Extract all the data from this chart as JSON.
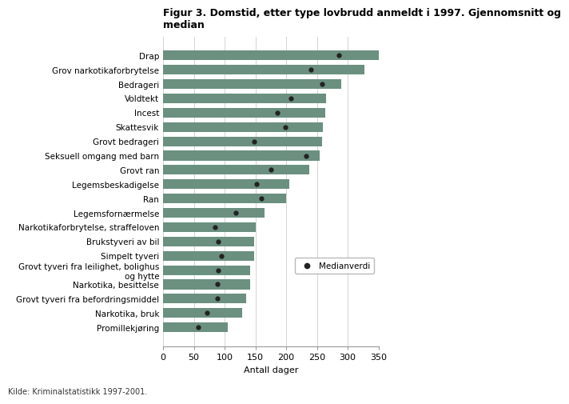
{
  "title_line1": "Figur 3. Domstid, etter type lovbrudd anmeldt i 1997. Gjennomsnitt og",
  "title_line2": "median",
  "categories": [
    "Drap",
    "Grov narkotikaforbrytelse",
    "Bedrageri",
    "Voldtekt",
    "Incest",
    "Skattesvik",
    "Grovt bedrageri",
    "Seksuell omgang med barn",
    "Grovt ran",
    "Legemsbeskadigelse",
    "Ran",
    "Legemsfornærmelse",
    "Narkotikaforbrytelse, straffeloven",
    "Brukstyveri av bil",
    "Simpelt tyveri",
    "Grovt tyveri fra leilighet, bolighus\nog hytte",
    "Narkotika, besittelse",
    "Grovt tyveri fra befordringsmiddel",
    "Narkotika, bruk",
    "Promillekjøring"
  ],
  "bar_values": [
    350,
    327,
    290,
    265,
    263,
    260,
    258,
    254,
    237,
    205,
    200,
    165,
    150,
    148,
    148,
    142,
    141,
    135,
    128,
    105
  ],
  "median_values": [
    285,
    240,
    258,
    208,
    185,
    198,
    148,
    233,
    175,
    152,
    160,
    118,
    85,
    90,
    95,
    90,
    88,
    88,
    72,
    57
  ],
  "bar_color": "#6b9080",
  "median_color": "#222222",
  "xlabel": "Antall dager",
  "xlim": [
    0,
    350
  ],
  "xticks": [
    0,
    50,
    100,
    150,
    200,
    250,
    300,
    350
  ],
  "legend_label": "Medianverdi",
  "source_text": "Kilde: Kriminalstatistikk 1997-2001.",
  "background_color": "#ffffff",
  "bar_height": 0.68,
  "title_fontsize": 9,
  "label_fontsize": 7.5,
  "tick_fontsize": 8,
  "xlabel_fontsize": 8
}
